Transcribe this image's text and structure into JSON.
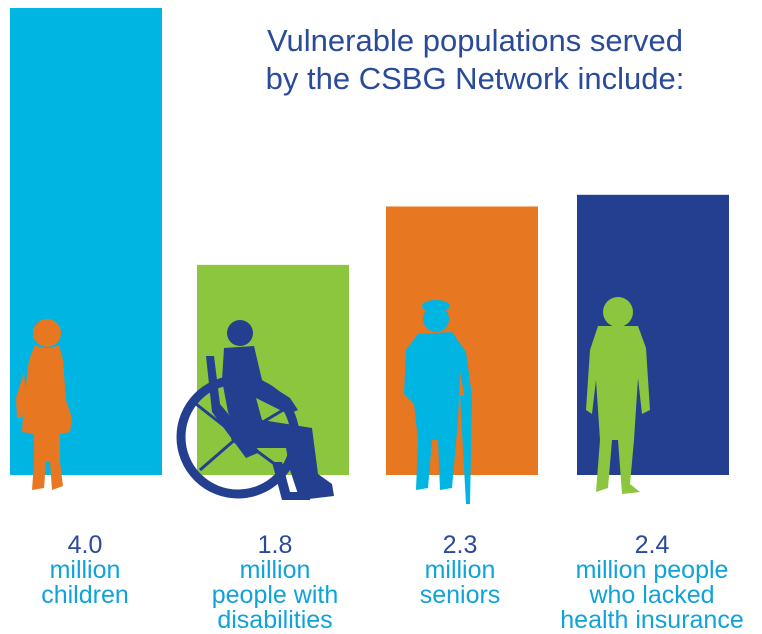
{
  "title_lines": [
    "Vulnerable populations served",
    "by the CSBG Network include:"
  ],
  "chart_data": {
    "type": "bar",
    "title": "Vulnerable populations served by the CSBG Network include:",
    "categories": [
      "million children",
      "million people with disabilities",
      "million seniors",
      "million people who lacked health insurance"
    ],
    "values": [
      4.0,
      1.8,
      2.3,
      2.4
    ],
    "value_labels": [
      "4.0",
      "1.8",
      "2.3",
      "2.4"
    ],
    "label_lines": [
      [
        "million",
        "children"
      ],
      [
        "million",
        "people with",
        "disabilities"
      ],
      [
        "million",
        "seniors"
      ],
      [
        "million people",
        "who lacked",
        "health insurance"
      ]
    ],
    "bar_colors": [
      "#00b5e2",
      "#8cc63f",
      "#e87722",
      "#243f8f"
    ],
    "figure_colors": [
      "#e87722",
      "#243f8f",
      "#00b5e2",
      "#8cc63f"
    ],
    "figure_icons": [
      "child-silhouette-icon",
      "wheelchair-user-silhouette-icon",
      "senior-with-cane-silhouette-icon",
      "adult-standing-silhouette-icon"
    ],
    "ylim": [
      0,
      4.0
    ],
    "grid": false,
    "legend": "none"
  }
}
